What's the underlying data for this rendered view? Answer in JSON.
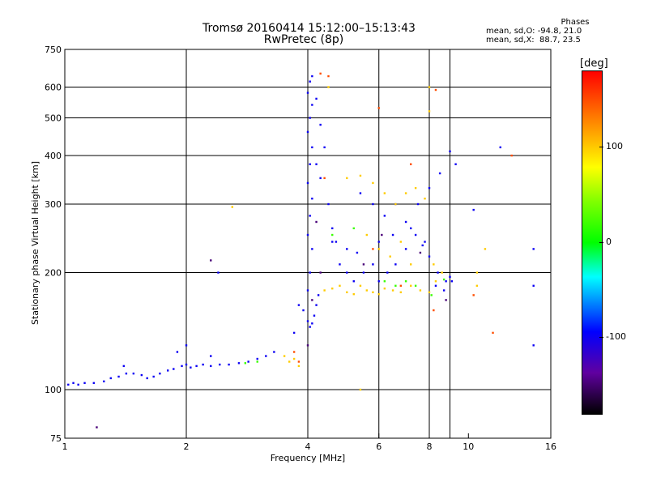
{
  "header": {
    "title_line1": "Tromsø 20160414 15:12:00–15:13:43",
    "title_line2": "RwPretec (8p)"
  },
  "phases_box": {
    "heading": "Phases",
    "line1": "mean, sd,O: -94.8, 21.0",
    "line2": "mean, sd,X:  88.7, 23.5"
  },
  "colorbar": {
    "unit_label": "[deg]",
    "tick_labels": [
      "100",
      "0",
      "-100"
    ],
    "tick_values": [
      100,
      0,
      -100
    ],
    "range": [
      -180,
      180
    ]
  },
  "colors": {
    "o_mode": "#1f3fe6",
    "x_mode": "#d8e600",
    "grid": "#000000"
  },
  "chart_data": {
    "type": "scatter",
    "title": "Tromsø 20160414 15:12:00–15:13:43",
    "subtitle": "RwPretec (8p)",
    "xlabel": "Frequency [MHz]",
    "ylabel": "Stationary phase Virtual Height [km]",
    "x_scale": "log",
    "y_scale": "log",
    "xlim": [
      1,
      16
    ],
    "ylim": [
      75,
      750
    ],
    "x_ticks": [
      1,
      2,
      4,
      6,
      8,
      10,
      16
    ],
    "x_tick_labels": [
      "1",
      "2",
      "4",
      "6",
      "8",
      "10",
      "16"
    ],
    "y_ticks": [
      75,
      100,
      200,
      300,
      400,
      500,
      600,
      750
    ],
    "y_tick_labels": [
      "75",
      "100",
      "200",
      "300",
      "400",
      "500",
      "600",
      "750"
    ],
    "grid": true,
    "x_gridlines": [
      2,
      4,
      6,
      8,
      9,
      16
    ],
    "y_gridlines": [
      100,
      200,
      300,
      400,
      500,
      600
    ],
    "color_variable": "phase [deg]",
    "series": [
      {
        "phase": -100,
        "points": [
          [
            1.02,
            103
          ],
          [
            1.05,
            104
          ],
          [
            1.08,
            103
          ],
          [
            1.12,
            104
          ],
          [
            1.18,
            104
          ],
          [
            1.25,
            105
          ],
          [
            1.3,
            107
          ],
          [
            1.36,
            108
          ],
          [
            1.42,
            110
          ],
          [
            1.48,
            110
          ],
          [
            1.55,
            109
          ],
          [
            1.6,
            107
          ],
          [
            1.66,
            108
          ],
          [
            1.72,
            110
          ],
          [
            1.8,
            112
          ],
          [
            1.86,
            113
          ],
          [
            1.95,
            115
          ],
          [
            2.0,
            116
          ],
          [
            2.05,
            114
          ],
          [
            2.12,
            115
          ],
          [
            2.2,
            116
          ],
          [
            2.3,
            115
          ],
          [
            2.42,
            116
          ],
          [
            2.55,
            116
          ],
          [
            2.7,
            117
          ],
          [
            2.85,
            118
          ],
          [
            3.0,
            120
          ],
          [
            3.15,
            122
          ],
          [
            3.3,
            125
          ],
          [
            1.4,
            115
          ],
          [
            1.9,
            125
          ],
          [
            2.0,
            130
          ],
          [
            2.3,
            122
          ],
          [
            3.7,
            140
          ],
          [
            3.8,
            165
          ],
          [
            3.9,
            160
          ],
          [
            4.0,
            150
          ],
          [
            4.05,
            145
          ],
          [
            4.1,
            148
          ],
          [
            4.15,
            155
          ],
          [
            4.2,
            165
          ],
          [
            4.25,
            175
          ],
          [
            4.0,
            180
          ],
          [
            4.05,
            200
          ],
          [
            4.1,
            230
          ],
          [
            4.0,
            250
          ],
          [
            4.05,
            280
          ],
          [
            4.1,
            310
          ],
          [
            4.0,
            340
          ],
          [
            4.05,
            380
          ],
          [
            4.1,
            420
          ],
          [
            4.0,
            460
          ],
          [
            4.05,
            500
          ],
          [
            4.1,
            540
          ],
          [
            4.0,
            580
          ],
          [
            4.05,
            620
          ],
          [
            4.1,
            640
          ],
          [
            4.2,
            560
          ],
          [
            4.3,
            480
          ],
          [
            4.4,
            420
          ],
          [
            4.2,
            380
          ],
          [
            4.3,
            350
          ],
          [
            4.5,
            300
          ],
          [
            4.6,
            260
          ],
          [
            4.7,
            240
          ],
          [
            4.8,
            210
          ],
          [
            5.0,
            200
          ],
          [
            5.2,
            190
          ],
          [
            5.5,
            200
          ],
          [
            5.8,
            210
          ],
          [
            6.0,
            190
          ],
          [
            6.3,
            200
          ],
          [
            6.6,
            210
          ],
          [
            7.0,
            230
          ],
          [
            7.4,
            250
          ],
          [
            7.8,
            240
          ],
          [
            8.0,
            220
          ],
          [
            8.4,
            200
          ],
          [
            8.8,
            190
          ],
          [
            9.0,
            195
          ],
          [
            5.4,
            320
          ],
          [
            5.8,
            300
          ],
          [
            6.2,
            280
          ],
          [
            6.6,
            300
          ],
          [
            7.0,
            270
          ],
          [
            7.5,
            300
          ],
          [
            8.0,
            330
          ],
          [
            8.5,
            360
          ],
          [
            9.0,
            410
          ],
          [
            9.3,
            380
          ],
          [
            4.6,
            240
          ],
          [
            5.0,
            230
          ],
          [
            5.3,
            225
          ],
          [
            6.0,
            240
          ],
          [
            6.5,
            250
          ],
          [
            7.2,
            260
          ],
          [
            7.7,
            235
          ],
          [
            8.3,
            185
          ],
          [
            8.7,
            180
          ],
          [
            9.1,
            190
          ],
          [
            2.4,
            200
          ],
          [
            14.5,
            230
          ],
          [
            14.5,
            185
          ],
          [
            14.5,
            130
          ],
          [
            12.0,
            420
          ],
          [
            10.3,
            290
          ]
        ]
      },
      {
        "phase": 100,
        "points": [
          [
            4.4,
            180
          ],
          [
            4.6,
            182
          ],
          [
            4.8,
            185
          ],
          [
            5.0,
            178
          ],
          [
            5.2,
            176
          ],
          [
            5.4,
            185
          ],
          [
            5.6,
            180
          ],
          [
            5.8,
            178
          ],
          [
            6.0,
            176
          ],
          [
            6.2,
            182
          ],
          [
            6.5,
            180
          ],
          [
            6.8,
            178
          ],
          [
            7.2,
            185
          ],
          [
            7.6,
            180
          ],
          [
            8.0,
            178
          ],
          [
            8.3,
            190
          ],
          [
            8.6,
            200
          ],
          [
            5.0,
            350
          ],
          [
            5.4,
            355
          ],
          [
            5.8,
            340
          ],
          [
            6.2,
            320
          ],
          [
            6.6,
            300
          ],
          [
            7.0,
            320
          ],
          [
            7.4,
            330
          ],
          [
            7.8,
            310
          ],
          [
            8.2,
            210
          ],
          [
            5.6,
            250
          ],
          [
            6.0,
            230
          ],
          [
            6.4,
            220
          ],
          [
            6.8,
            240
          ],
          [
            7.2,
            210
          ],
          [
            10.5,
            200
          ],
          [
            10.5,
            185
          ],
          [
            11.0,
            230
          ],
          [
            3.6,
            118
          ],
          [
            3.7,
            120
          ],
          [
            3.8,
            115
          ],
          [
            3.5,
            122
          ],
          [
            2.6,
            295
          ],
          [
            8.0,
            520
          ],
          [
            8.0,
            600
          ],
          [
            5.4,
            100
          ],
          [
            4.5,
            600
          ]
        ]
      },
      {
        "phase": 20,
        "points": [
          [
            6.2,
            190
          ],
          [
            6.6,
            185
          ],
          [
            7.0,
            190
          ],
          [
            7.4,
            185
          ],
          [
            8.1,
            175
          ],
          [
            8.7,
            192
          ],
          [
            4.6,
            250
          ],
          [
            5.2,
            260
          ],
          [
            3.0,
            118
          ],
          [
            2.8,
            117
          ]
        ]
      },
      {
        "phase": 150,
        "points": [
          [
            3.7,
            125
          ],
          [
            3.8,
            118
          ],
          [
            4.3,
            650
          ],
          [
            4.5,
            640
          ],
          [
            6.0,
            530
          ],
          [
            8.3,
            590
          ],
          [
            7.2,
            380
          ],
          [
            5.8,
            230
          ],
          [
            11.5,
            140
          ],
          [
            10.3,
            175
          ],
          [
            12.8,
            400
          ],
          [
            4.4,
            350
          ],
          [
            8.2,
            160
          ],
          [
            6.8,
            185
          ]
        ]
      },
      {
        "phase": -150,
        "points": [
          [
            1.2,
            80
          ],
          [
            2.3,
            215
          ],
          [
            4.1,
            170
          ],
          [
            4.3,
            200
          ],
          [
            5.5,
            210
          ],
          [
            6.1,
            250
          ],
          [
            7.6,
            225
          ],
          [
            8.8,
            170
          ],
          [
            4.2,
            270
          ],
          [
            4.0,
            130
          ]
        ]
      }
    ]
  }
}
